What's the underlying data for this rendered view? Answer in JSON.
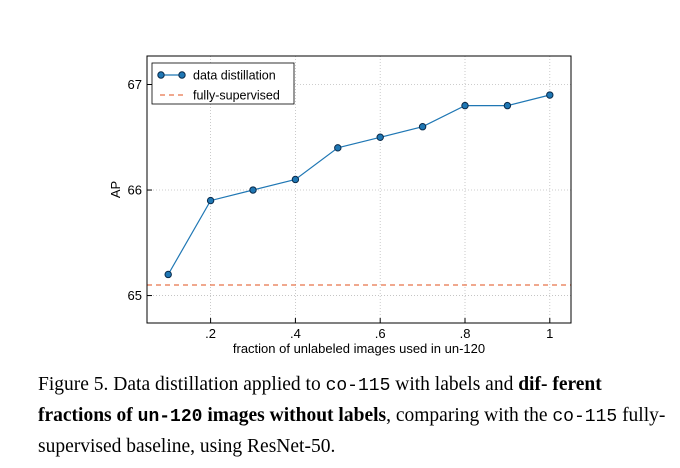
{
  "chart_data": {
    "type": "line",
    "xlabel": "fraction of unlabeled images used in un-120",
    "ylabel": "AP",
    "xlim": [
      0.05,
      1.05
    ],
    "ylim": [
      64.74,
      67.27
    ],
    "x_ticks": [
      0.2,
      0.4,
      0.6,
      0.8,
      1.0
    ],
    "x_tick_labels": [
      ".2",
      ".4",
      ".6",
      ".8",
      "1"
    ],
    "y_ticks": [
      65,
      66,
      67
    ],
    "y_tick_labels": [
      "65",
      "66",
      "67"
    ],
    "grid": true,
    "legend_position": "top-left",
    "series": [
      {
        "name": "data distillation",
        "style": "line-with-markers",
        "color": "#1f77b4",
        "x": [
          0.1,
          0.2,
          0.3,
          0.4,
          0.5,
          0.6,
          0.7,
          0.8,
          0.9,
          1.0
        ],
        "y": [
          65.2,
          65.9,
          66.0,
          66.1,
          66.4,
          66.5,
          66.6,
          66.8,
          66.8,
          66.9
        ]
      },
      {
        "name": "fully-supervised",
        "style": "dashed-horizontal",
        "color": "#e8744a",
        "y": 65.1
      }
    ]
  },
  "caption": {
    "lead": "Figure 5. Data distillation applied to ",
    "code1": "co-115",
    "mid1": " with labels and ",
    "bold1": "dif- ferent fractions of ",
    "bold_code": "un-120",
    "bold2": " images without labels",
    "mid2": ", comparing with the ",
    "code2": "co-115",
    "tail": " fully-supervised baseline, using ResNet-50."
  }
}
